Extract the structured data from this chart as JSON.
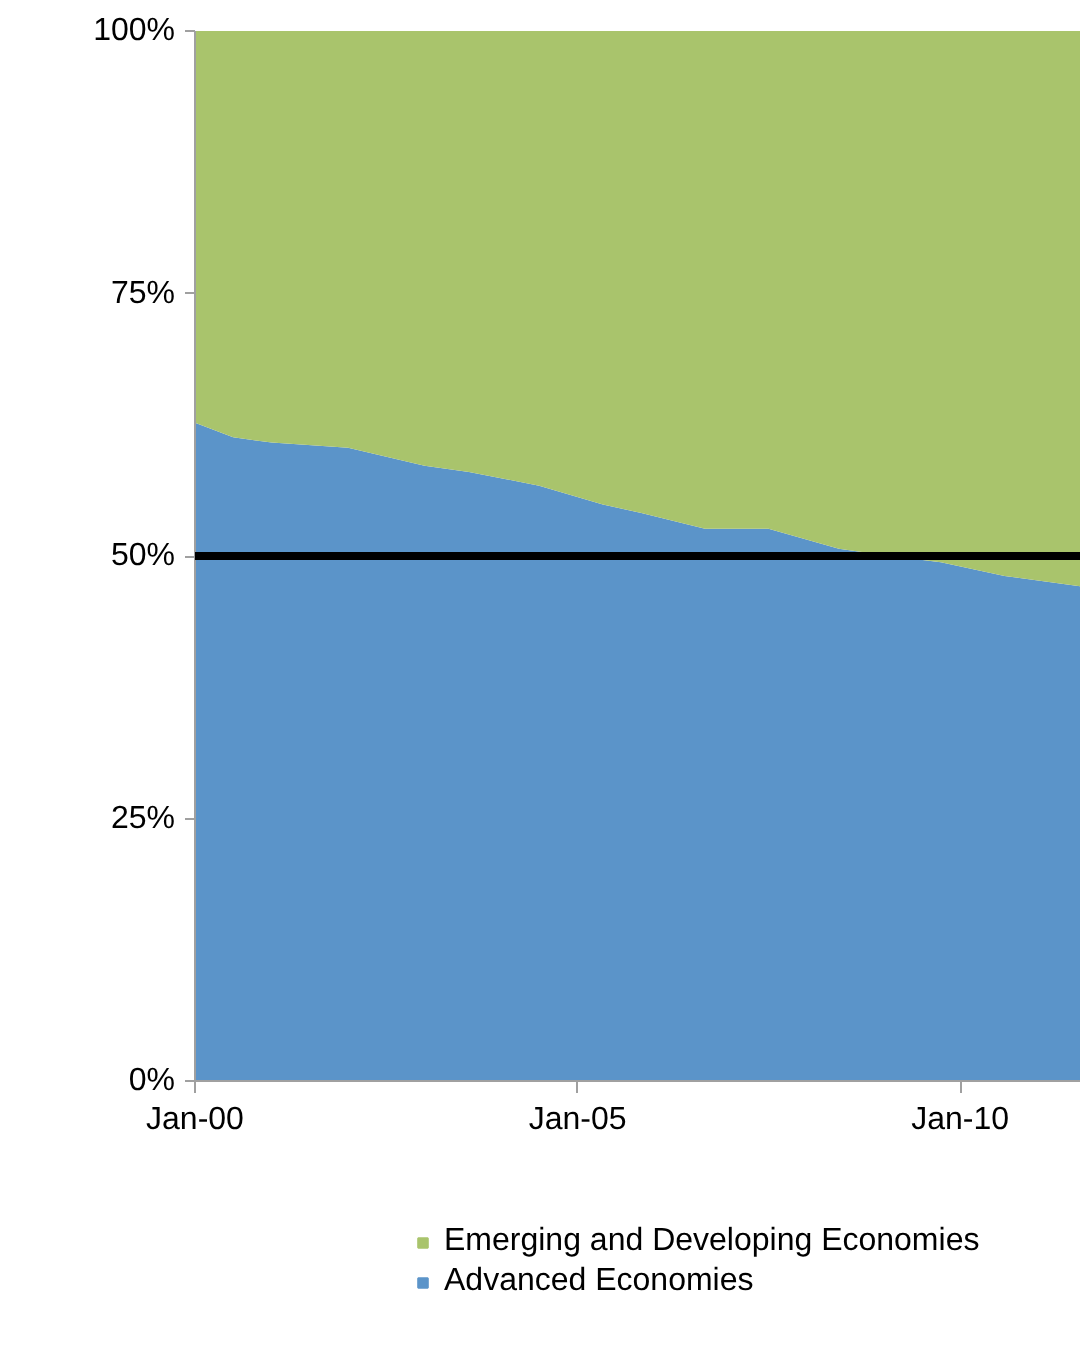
{
  "chart_data": {
    "type": "area",
    "stacked": true,
    "x": [
      "2000-01",
      "2000-07",
      "2001-01",
      "2002-01",
      "2003-01",
      "2003-08",
      "2004-07",
      "2005-05",
      "2005-11",
      "2006-09",
      "2007-07",
      "2008-06",
      "2009-02",
      "2009-10",
      "2010-08",
      "2011-08"
    ],
    "series": [
      {
        "name": "Advanced Economies",
        "color": "#5b94c9",
        "values": [
          62.7,
          61.3,
          60.8,
          60.3,
          58.6,
          58.0,
          56.7,
          54.9,
          54.1,
          52.6,
          52.6,
          50.7,
          50.0,
          49.4,
          48.1,
          47.1
        ]
      },
      {
        "name": "Emerging and Developing Economies",
        "color": "#a9c46c",
        "values": [
          37.3,
          38.7,
          39.2,
          39.7,
          41.4,
          42.0,
          43.3,
          45.1,
          45.9,
          47.4,
          47.4,
          49.3,
          50.0,
          50.6,
          51.9,
          52.9
        ]
      }
    ],
    "xlim": [
      "2000-01",
      "2011-08"
    ],
    "xticks": [
      {
        "value": "2000-01",
        "label": "Jan-00"
      },
      {
        "value": "2005-01",
        "label": "Jan-05"
      },
      {
        "value": "2010-01",
        "label": "Jan-10"
      }
    ],
    "ylim": [
      0,
      100
    ],
    "yticks": [
      {
        "value": 0,
        "label": "0%"
      },
      {
        "value": 25,
        "label": "25%"
      },
      {
        "value": 50,
        "label": "50%"
      },
      {
        "value": 75,
        "label": "75%"
      },
      {
        "value": 100,
        "label": "100%"
      }
    ],
    "ref_lines": [
      {
        "axis": "y",
        "value": 50,
        "label": null,
        "color": "#000000"
      }
    ],
    "grid": false,
    "legend": "bottom"
  }
}
